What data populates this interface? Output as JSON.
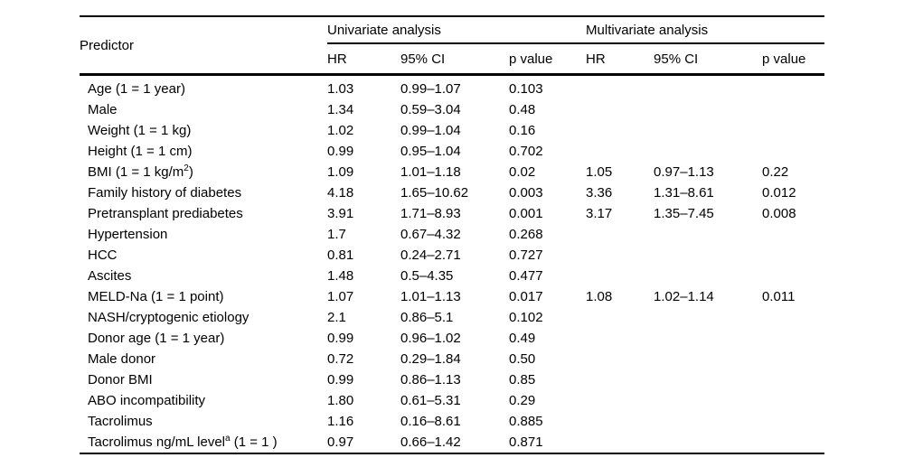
{
  "page": {
    "background_color": "#ffffff",
    "text_color": "#000000",
    "rule_color": "#000000"
  },
  "table": {
    "predictor_header": "Predictor",
    "group_headers": [
      "Univariate analysis",
      "Multivariate analysis"
    ],
    "sub_headers": [
      "HR",
      "95% CI",
      "p value",
      "HR",
      "95% CI",
      "p value"
    ],
    "rows": [
      [
        "Age (1 = 1 year)",
        "1.03",
        "0.99–1.07",
        "0.103",
        "",
        "",
        ""
      ],
      [
        "Male",
        "1.34",
        "0.59–3.04",
        "0.48",
        "",
        "",
        ""
      ],
      [
        "Weight (1 = 1 kg)",
        "1.02",
        "0.99–1.04",
        "0.16",
        "",
        "",
        ""
      ],
      [
        "Height (1 = 1 cm)",
        "0.99",
        "0.95–1.04",
        "0.702",
        "",
        "",
        ""
      ],
      [
        "BMI (1 = 1 kg/m^{2})",
        "1.09",
        "1.01–1.18",
        "0.02",
        "1.05",
        "0.97–1.13",
        "0.22"
      ],
      [
        "Family history of diabetes",
        "4.18",
        "1.65–10.62",
        "0.003",
        "3.36",
        "1.31–8.61",
        "0.012"
      ],
      [
        "Pretransplant prediabetes",
        "3.91",
        "1.71–8.93",
        "0.001",
        "3.17",
        "1.35–7.45",
        "0.008"
      ],
      [
        "Hypertension",
        "1.7",
        "0.67–4.32",
        "0.268",
        "",
        "",
        ""
      ],
      [
        "HCC",
        "0.81",
        "0.24–2.71",
        "0.727",
        "",
        "",
        ""
      ],
      [
        "Ascites",
        "1.48",
        "0.5–4.35",
        "0.477",
        "",
        "",
        ""
      ],
      [
        "MELD-Na (1 = 1 point)",
        "1.07",
        "1.01–1.13",
        "0.017",
        "1.08",
        "1.02–1.14",
        "0.011"
      ],
      [
        "NASH/cryptogenic etiology",
        "2.1",
        "0.86–5.1",
        "0.102",
        "",
        "",
        ""
      ],
      [
        "Donor age (1 = 1 year)",
        "0.99",
        "0.96–1.02",
        "0.49",
        "",
        "",
        ""
      ],
      [
        "Male donor",
        "0.72",
        "0.29–1.84",
        "0.50",
        "",
        "",
        ""
      ],
      [
        "Donor BMI",
        "0.99",
        "0.86–1.13",
        "0.85",
        "",
        "",
        ""
      ],
      [
        "ABO incompatibility",
        "1.80",
        "0.61–5.31",
        "0.29",
        "",
        "",
        ""
      ],
      [
        "Tacrolimus",
        "1.16",
        "0.16–8.61",
        "0.885",
        "",
        "",
        ""
      ],
      [
        "Tacrolimus ng/mL level^{a} (1 = 1 )",
        "0.97",
        "0.66–1.42",
        "0.871",
        "",
        "",
        ""
      ]
    ]
  }
}
